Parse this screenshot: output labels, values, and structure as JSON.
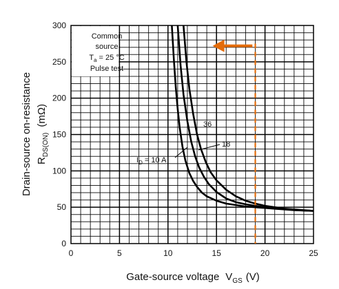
{
  "chart_data": {
    "type": "line",
    "x_label": "Gate-source voltage",
    "x_symbol": "V",
    "x_symbol_sub": "GS",
    "x_unit": "(V)",
    "y_label_line1": "Drain-source on-resistance",
    "y_symbol": "R",
    "y_symbol_sub": "DS(ON)",
    "y_unit": "(mΩ)",
    "xlim": [
      0,
      25
    ],
    "ylim": [
      0,
      300
    ],
    "x_ticks": [
      0,
      5,
      10,
      15,
      20,
      25
    ],
    "y_ticks": [
      0,
      50,
      100,
      150,
      200,
      250,
      300
    ],
    "grid": true,
    "conditions": {
      "line1": "Common",
      "line2": "source",
      "line3_prefix": "T",
      "line3_sub": "a",
      "line3_suffix": " = 25 °C",
      "line4": "Pulse test"
    },
    "series": [
      {
        "name": "I_D = 10 A",
        "label_prefix": "I",
        "label_sub": "D",
        "label_suffix": " = 10 A",
        "x": [
          10.4,
          10.6,
          10.8,
          11.0,
          11.2,
          11.5,
          11.8,
          12.2,
          12.6,
          13.0,
          13.5,
          14.0,
          15.0,
          16.0,
          17.0,
          18.0,
          19.0,
          20.0,
          21.0,
          22.0,
          23.0,
          24.0,
          25.0
        ],
        "y": [
          300,
          255,
          215,
          185,
          160,
          133,
          114,
          97,
          86,
          78,
          70,
          65,
          59,
          55,
          53,
          51,
          50,
          49,
          48,
          47,
          46,
          45.5,
          45
        ]
      },
      {
        "name": "18",
        "x": [
          11.0,
          11.3,
          11.6,
          12.0,
          12.4,
          12.8,
          13.2,
          13.7,
          14.2,
          15.0,
          16.0,
          17.0,
          18.0,
          19.0,
          20.0,
          21.0,
          22.0,
          23.0,
          24.0,
          25.0
        ],
        "y": [
          300,
          245,
          205,
          168,
          140,
          120,
          105,
          92,
          82,
          71,
          62,
          57,
          54,
          52,
          50,
          48.5,
          47.5,
          46.5,
          45.5,
          45
        ]
      },
      {
        "name": "36",
        "x": [
          11.6,
          11.9,
          12.2,
          12.6,
          13.0,
          13.4,
          13.9,
          14.4,
          15.0,
          16.0,
          17.0,
          18.0,
          19.0,
          20.0,
          21.0,
          22.0,
          23.0,
          24.0,
          25.0
        ],
        "y": [
          300,
          250,
          213,
          178,
          150,
          130,
          112,
          98,
          87,
          74,
          65,
          59,
          55,
          52,
          50,
          48,
          47,
          46,
          45
        ]
      }
    ],
    "annotation": {
      "vertical_line_x": 19,
      "arrow_from_x": 18.7,
      "arrow_to_x": 14.6,
      "arrow_y": 272,
      "color": "#E46C0A"
    }
  }
}
